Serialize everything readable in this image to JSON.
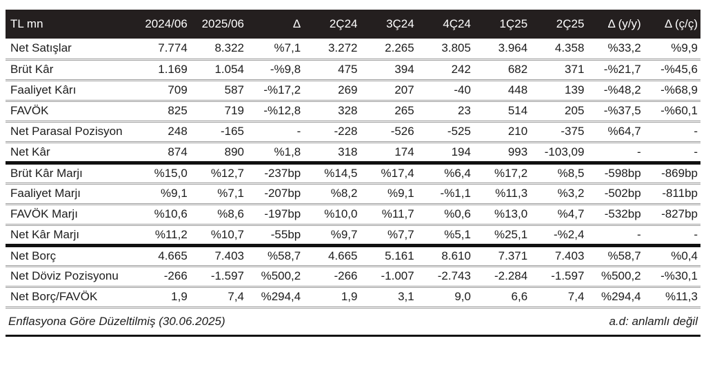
{
  "table": {
    "columns": [
      "TL mn",
      "2024/06",
      "2025/06",
      "Δ",
      "2Ç24",
      "3Ç24",
      "4Ç24",
      "1Ç25",
      "2Ç25",
      "Δ (y/y)",
      "Δ (ç/ç)"
    ],
    "rows": [
      {
        "label": "Net Satışlar",
        "divider": "normal",
        "values": [
          "7.774",
          "8.322",
          "%7,1",
          "3.272",
          "2.265",
          "3.805",
          "3.964",
          "4.358",
          "%33,2",
          "%9,9"
        ]
      },
      {
        "label": "Brüt Kâr",
        "divider": "normal",
        "values": [
          "1.169",
          "1.054",
          "-%9,8",
          "475",
          "394",
          "242",
          "682",
          "371",
          "-%21,7",
          "-%45,6"
        ]
      },
      {
        "label": "Faaliyet Kârı",
        "divider": "normal",
        "values": [
          "709",
          "587",
          "-%17,2",
          "269",
          "207",
          "-40",
          "448",
          "139",
          "-%48,2",
          "-%68,9"
        ]
      },
      {
        "label": "FAVÖK",
        "divider": "normal",
        "values": [
          "825",
          "719",
          "-%12,8",
          "328",
          "265",
          "23",
          "514",
          "205",
          "-%37,5",
          "-%60,1"
        ]
      },
      {
        "label": "Net Parasal Pozisyon",
        "divider": "normal",
        "values": [
          "248",
          "-165",
          "-",
          "-228",
          "-526",
          "-525",
          "210",
          "-375",
          "%64,7",
          "-"
        ]
      },
      {
        "label": "Net Kâr",
        "divider": "heavy",
        "values": [
          "874",
          "890",
          "%1,8",
          "318",
          "174",
          "194",
          "993",
          "-103,09",
          "-",
          "-"
        ]
      },
      {
        "label": "Brüt Kâr Marjı",
        "divider": "normal",
        "values": [
          "%15,0",
          "%12,7",
          "-237bp",
          "%14,5",
          "%17,4",
          "%6,4",
          "%17,2",
          "%8,5",
          "-598bp",
          "-869bp"
        ]
      },
      {
        "label": "Faaliyet Marjı",
        "divider": "normal",
        "values": [
          "%9,1",
          "%7,1",
          "-207bp",
          "%8,2",
          "%9,1",
          "-%1,1",
          "%11,3",
          "%3,2",
          "-502bp",
          "-811bp"
        ]
      },
      {
        "label": "FAVÖK Marjı",
        "divider": "normal",
        "values": [
          "%10,6",
          "%8,6",
          "-197bp",
          "%10,0",
          "%11,7",
          "%0,6",
          "%13,0",
          "%4,7",
          "-532bp",
          "-827bp"
        ]
      },
      {
        "label": "Net Kâr Marjı",
        "divider": "heavy",
        "values": [
          "%11,2",
          "%10,7",
          "-55bp",
          "%9,7",
          "%7,7",
          "%5,1",
          "%25,1",
          "-%2,4",
          "-",
          "-"
        ]
      },
      {
        "label": "Net Borç",
        "divider": "normal",
        "values": [
          "4.665",
          "7.403",
          "%58,7",
          "4.665",
          "5.161",
          "8.610",
          "7.371",
          "7.403",
          "%58,7",
          "%0,4"
        ]
      },
      {
        "label": "Net Döviz Pozisyonu",
        "divider": "normal",
        "values": [
          "-266",
          "-1.597",
          "%500,2",
          "-266",
          "-1.007",
          "-2.743",
          "-2.284",
          "-1.597",
          "%500,2",
          "-%30,1"
        ]
      },
      {
        "label": "Net Borç/FAVÖK",
        "divider": "normal",
        "values": [
          "1,9",
          "7,4",
          "%294,4",
          "1,9",
          "3,1",
          "9,0",
          "6,6",
          "7,4",
          "%294,4",
          "%11,3"
        ]
      }
    ]
  },
  "footer": {
    "left": "Enflasyona Göre Düzeltilmiş (30.06.2025)",
    "right": "a.d: anlamlı değil"
  },
  "colors": {
    "header_bg": "#241f1f",
    "header_text": "#ffffff",
    "body_text": "#1c1c1c",
    "divider_gray": "#9c9c9c",
    "divider_heavy": "#111111"
  }
}
